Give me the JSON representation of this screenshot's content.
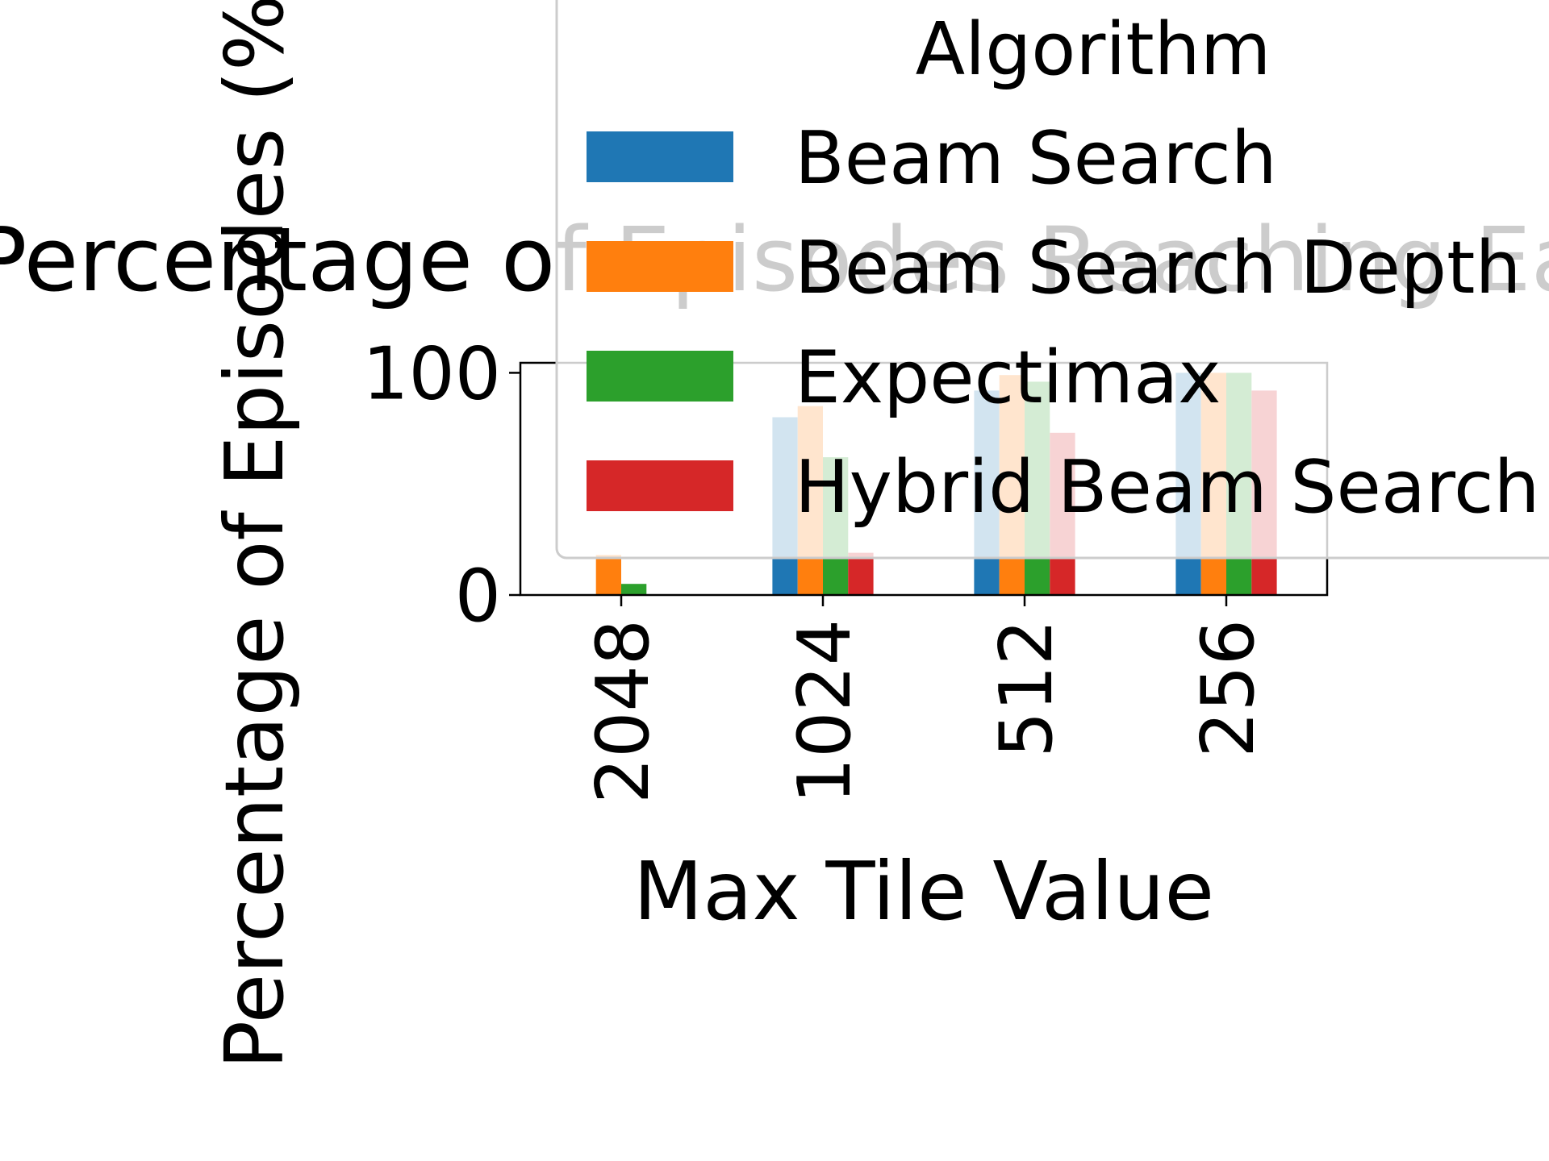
{
  "chart_data": {
    "type": "bar",
    "title": "Percentage of Episodes Reaching Each Tile",
    "xlabel": "Max Tile Value",
    "ylabel": "Percentage of Episodes (%)",
    "categories": [
      "2048",
      "1024",
      "512",
      "256"
    ],
    "ylim": [
      0,
      104.5
    ],
    "yticks": [
      0,
      100
    ],
    "legend": {
      "title": "Algorithm",
      "placement": "upper-right, overflowing the axes"
    },
    "series": [
      {
        "name": "Beam Search",
        "color": "#1f77b4",
        "values": [
          0,
          80,
          92,
          100
        ]
      },
      {
        "name": "Beam Search Depth",
        "color": "#ff7f0e",
        "values": [
          18,
          85,
          99,
          100
        ]
      },
      {
        "name": "Expectimax",
        "color": "#2ca02c",
        "values": [
          5,
          62,
          96,
          100
        ]
      },
      {
        "name": "Hybrid Beam Search",
        "color": "#d62728",
        "values": [
          0,
          19,
          73,
          92
        ]
      }
    ]
  }
}
